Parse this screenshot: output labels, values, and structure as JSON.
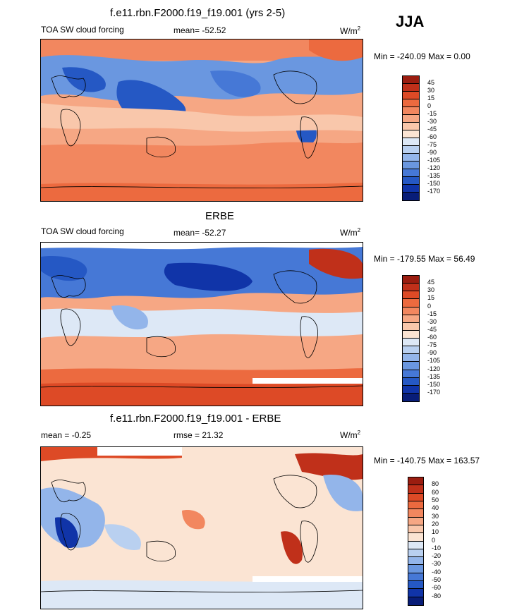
{
  "header": {
    "season": "JJA"
  },
  "chart_data": [
    {
      "type": "heatmap",
      "title": "f.e11.rbn.F2000.f19_f19.001 (yrs 2-5)",
      "left_label": "TOA SW cloud forcing",
      "center_label": "mean= -52.52",
      "units": "W/m",
      "units_sup": "2",
      "minmax": "Min = -240.09 Max =   0.00",
      "colorbar_levels": [
        "45",
        "30",
        "15",
        "0",
        "-15",
        "-30",
        "-45",
        "-60",
        "-75",
        "-90",
        "-105",
        "-120",
        "-135",
        "-150",
        "-170"
      ],
      "colorbar_colors": [
        "#9b1d10",
        "#c0301a",
        "#dd4a26",
        "#ec6a3f",
        "#f2875f",
        "#f6a784",
        "#f9c7ab",
        "#fbe4d3",
        "#dde8f6",
        "#b9d0f0",
        "#93b5ea",
        "#6a97e0",
        "#4678d6",
        "#2558c4",
        "#1034a8",
        "#081d78"
      ]
    },
    {
      "type": "heatmap",
      "title": "ERBE",
      "left_label": "TOA SW cloud forcing",
      "center_label": "mean= -52.27",
      "units": "W/m",
      "units_sup": "2",
      "minmax": "Min = -179.55 Max =  56.49",
      "colorbar_levels": [
        "45",
        "30",
        "15",
        "0",
        "-15",
        "-30",
        "-45",
        "-60",
        "-75",
        "-90",
        "-105",
        "-120",
        "-135",
        "-150",
        "-170"
      ],
      "colorbar_colors": [
        "#9b1d10",
        "#c0301a",
        "#dd4a26",
        "#ec6a3f",
        "#f2875f",
        "#f6a784",
        "#f9c7ab",
        "#fbe4d3",
        "#dde8f6",
        "#b9d0f0",
        "#93b5ea",
        "#6a97e0",
        "#4678d6",
        "#2558c4",
        "#1034a8",
        "#081d78"
      ]
    },
    {
      "type": "heatmap",
      "title": "f.e11.rbn.F2000.f19_f19.001 - ERBE",
      "left_label": "mean =  -0.25",
      "center_label": "rmse =  21.32",
      "units": "W/m",
      "units_sup": "2",
      "minmax": "Min = -140.75 Max = 163.57",
      "colorbar_levels": [
        "80",
        "60",
        "50",
        "40",
        "30",
        "20",
        "10",
        "0",
        "-10",
        "-20",
        "-30",
        "-40",
        "-50",
        "-60",
        "-80"
      ],
      "colorbar_colors": [
        "#9b1d10",
        "#c0301a",
        "#dd4a26",
        "#ec6a3f",
        "#f2875f",
        "#f6a784",
        "#f9c7ab",
        "#fbe4d3",
        "#dde8f6",
        "#b9d0f0",
        "#93b5ea",
        "#6a97e0",
        "#4678d6",
        "#2558c4",
        "#1034a8",
        "#081d78"
      ]
    }
  ]
}
